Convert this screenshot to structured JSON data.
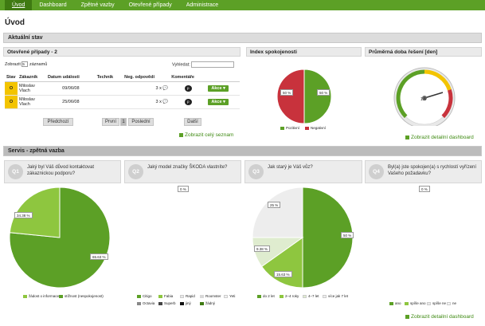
{
  "nav": {
    "items": [
      "Úvod",
      "Dashboard",
      "Zpětné vazby",
      "Otevřené případy",
      "Administrace"
    ]
  },
  "page_title": "Úvod",
  "aktualni_stav": "Aktuální stav",
  "cases": {
    "header": "Otevřené případy - 2",
    "show_label_a": "Zobrazit",
    "show_value": "5",
    "show_label_b": "záznamů",
    "search_label": "Vyhledat:",
    "columns": [
      "Stav",
      "Zákazník",
      "Datum události",
      "Technik",
      "Neg. odpovědí",
      "Komentáře",
      ""
    ],
    "rows": [
      {
        "stav": "O",
        "zakaznik": "Miloslav Vlach",
        "datum": "09/06/08",
        "technik": "",
        "neg": "3 x",
        "action": "Akce"
      },
      {
        "stav": "O",
        "zakaznik": "Miloslav Vlach",
        "datum": "25/06/08",
        "technik": "",
        "neg": "3 x",
        "action": "Akce"
      }
    ],
    "pager": {
      "prev": "Předchozí",
      "first": "První",
      "current": "1",
      "last": "Poslední",
      "next": "Další"
    },
    "link_all": "Zobrazit celý seznam"
  },
  "satisfaction": {
    "header": "Index spokojenosti",
    "left_label": "50 %",
    "right_label": "50 %",
    "legend": [
      "Pozitivní",
      "Negativní"
    ],
    "colors": {
      "positive": "#5ca026",
      "negative": "#c8323c"
    }
  },
  "resolution": {
    "header": "Průměrná doba řešení [den]",
    "value": "1.5",
    "link": "Zobrazit detailní dashboard"
  },
  "servis": {
    "header": "Servis - zpětná vazba",
    "link": "Zobrazit detailní dashboard",
    "questions": [
      {
        "badge": "Q1",
        "text": "Jaký byl Váš důvod kontaktovat zákaznickou podporu?"
      },
      {
        "badge": "Q2",
        "text": "Jaký model značky ŠKODA vlastníte?"
      },
      {
        "badge": "Q3",
        "text": "Jak starý je Váš vůz?"
      },
      {
        "badge": "Q4",
        "text": "Byl(a) jste spokojen(a) s rychlostí vyřízení Vašeho požadavku?"
      }
    ],
    "q1": {
      "labels": [
        "34.38 %",
        "65.63 %"
      ],
      "legend": [
        "žádost o informace",
        "stížnost (nespokojenost)"
      ]
    },
    "q2": {
      "label": "0 %",
      "legend": [
        "Citigo",
        "Fabia",
        "Rapid",
        "Roomster",
        "Yeti",
        "Octavia",
        "Superb",
        "jiný",
        "žádný"
      ]
    },
    "q3": {
      "labels": [
        "25 %",
        "9.38 %",
        "15.63 %",
        "50 %"
      ],
      "legend": [
        "do 2 let",
        "2–4 roky",
        "4–7 let",
        "více jak 7 let"
      ]
    },
    "q4": {
      "label": "0 %",
      "legend": [
        "ano",
        "spíše ano",
        "spíše ne",
        "ne"
      ]
    }
  },
  "chart_data": [
    {
      "type": "pie",
      "title": "Index spokojenosti",
      "categories": [
        "Pozitivní",
        "Negativní"
      ],
      "values": [
        50,
        50
      ]
    },
    {
      "type": "pie",
      "title": "Jaký byl Váš důvod kontaktovat zákaznickou podporu?",
      "categories": [
        "žádost o informace",
        "stížnost (nespokojenost)"
      ],
      "values": [
        34.38,
        65.63
      ]
    },
    {
      "type": "pie",
      "title": "Jak starý je Váš vůz?",
      "categories": [
        "do 2 let",
        "2–4 roky",
        "4–7 let",
        "více jak 7 let"
      ],
      "values": [
        50,
        15.63,
        9.38,
        25
      ]
    }
  ]
}
